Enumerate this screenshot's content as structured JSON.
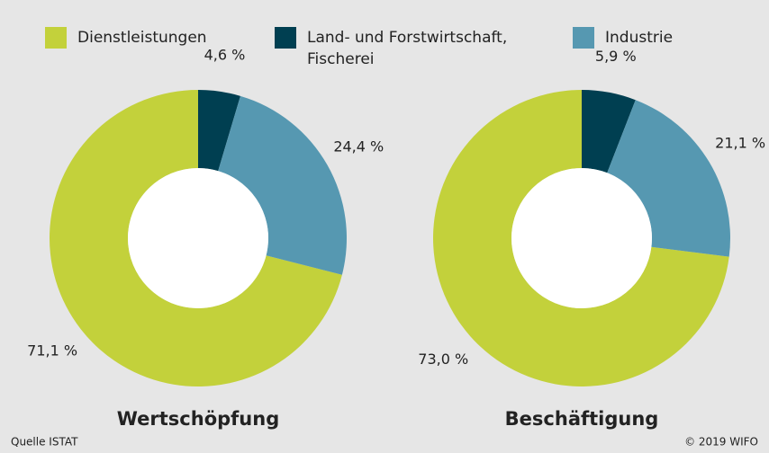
{
  "legend": {
    "categories": [
      "Dienstleistungen",
      "Land- und Forstwirtschaft, Fischerei",
      "Industrie"
    ],
    "colors": [
      "#c3d13b",
      "#003f51",
      "#5698b1"
    ]
  },
  "chart_data": [
    {
      "type": "pie",
      "donut": true,
      "title": "Wertschöpfung",
      "values": [
        71.1,
        4.6,
        24.4
      ],
      "value_labels": [
        "71,1 %",
        "4,6 %",
        "24,4 %"
      ]
    },
    {
      "type": "pie",
      "donut": true,
      "title": "Beschäftigung",
      "values": [
        73.0,
        5.9,
        21.1
      ],
      "value_labels": [
        "73,0 %",
        "5,9 %",
        "21,1 %"
      ]
    }
  ],
  "source": "Quelle ISTAT",
  "credit": "© 2019 WIFO"
}
